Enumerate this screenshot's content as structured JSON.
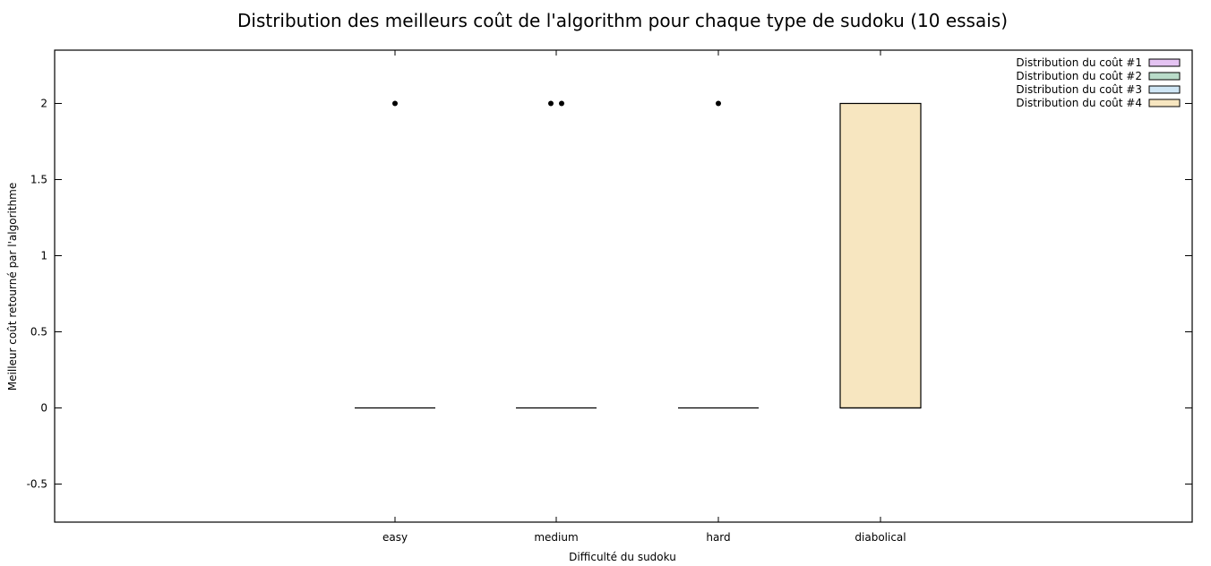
{
  "chart_data": {
    "type": "box",
    "title": "Distribution des meilleurs coût de l'algorithm pour chaque type de sudoku (10 essais)",
    "xlabel": "Difficulté du sudoku",
    "ylabel": "Meilleur coût retourné par l'algorithme",
    "categories": [
      "easy",
      "medium",
      "hard",
      "diabolical"
    ],
    "ylim": [
      -0.75,
      2.35
    ],
    "yticks": [
      -0.5,
      0,
      0.5,
      1,
      1.5,
      2
    ],
    "ytick_labels": [
      "-0.5",
      "0",
      "0.5",
      "1",
      "1.5",
      "2"
    ],
    "grid": false,
    "legend_position": "top-right",
    "series": [
      {
        "name": "Distribution du coût #1",
        "color": "#e4c3f2",
        "category": "easy",
        "q1": 0,
        "median": 0,
        "q3": 0,
        "whisker_low": 0,
        "whisker_high": 0,
        "outliers": [
          2
        ]
      },
      {
        "name": "Distribution du coût #2",
        "color": "#b9dcc9",
        "category": "medium",
        "q1": 0,
        "median": 0,
        "q3": 0,
        "whisker_low": 0,
        "whisker_high": 0,
        "outliers": [
          2,
          2
        ]
      },
      {
        "name": "Distribution du coût #3",
        "color": "#cfe6f5",
        "category": "hard",
        "q1": 0,
        "median": 0,
        "q3": 0,
        "whisker_low": 0,
        "whisker_high": 0,
        "outliers": [
          2
        ]
      },
      {
        "name": "Distribution du coût #4",
        "color": "#f7e6c0",
        "category": "diabolical",
        "q1": 0,
        "median": 0,
        "q3": 2,
        "whisker_low": 0,
        "whisker_high": 2,
        "outliers": []
      }
    ]
  }
}
